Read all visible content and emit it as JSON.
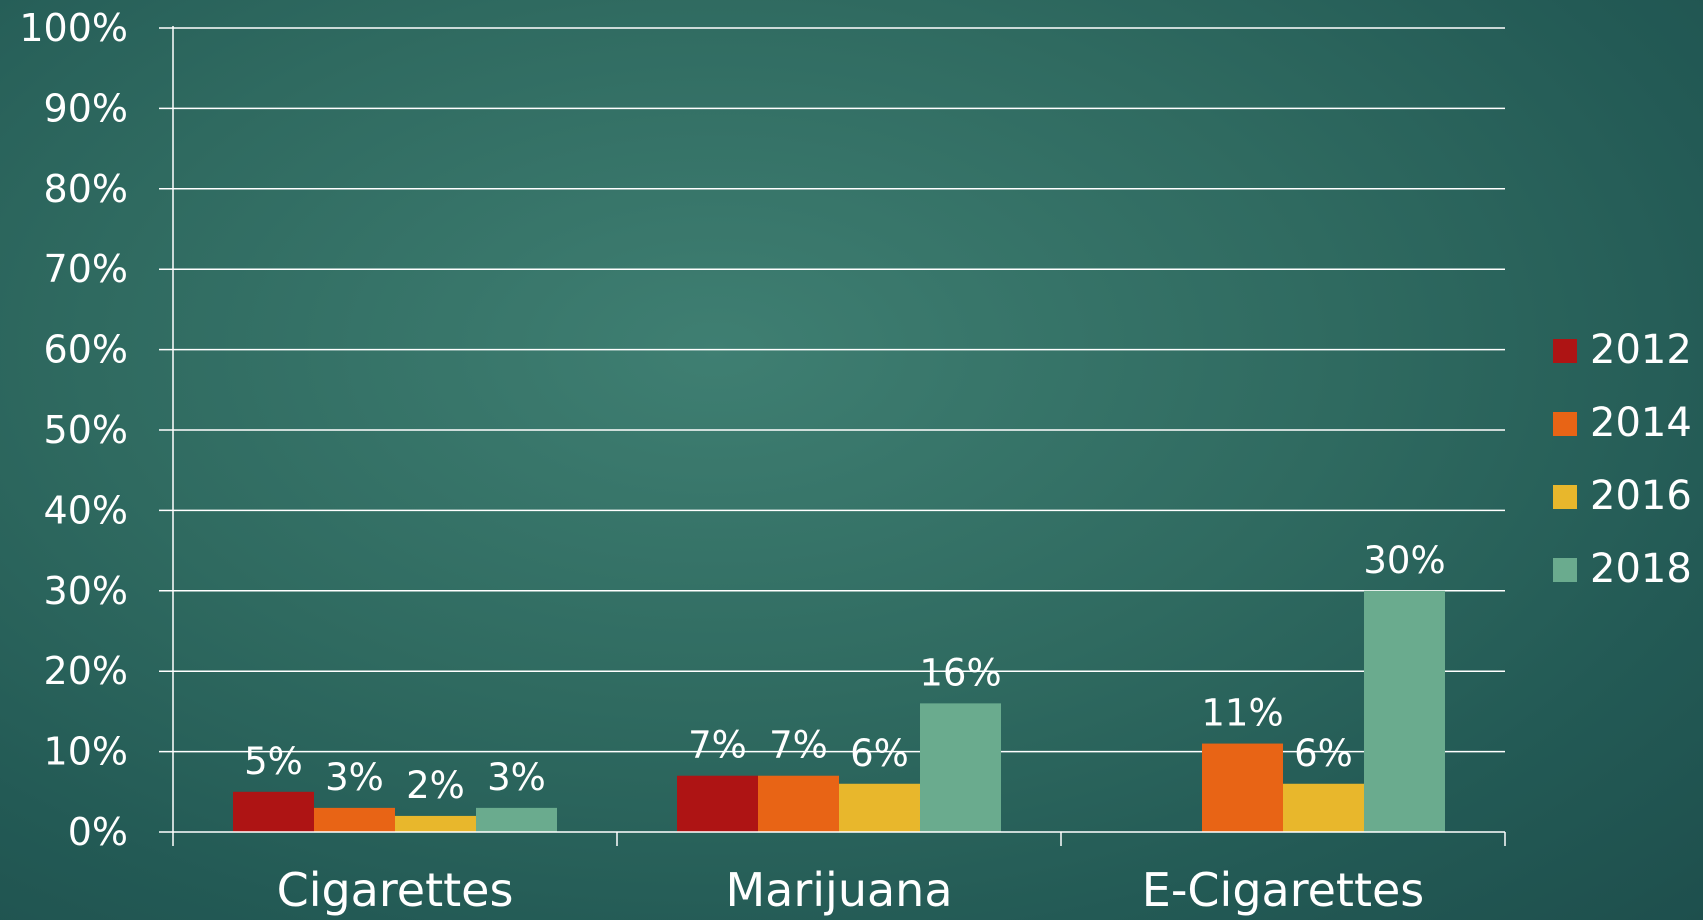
{
  "chart_data": {
    "type": "bar",
    "title": "",
    "xlabel": "",
    "ylabel": "",
    "categories": [
      "Cigarettes",
      "Marijuana",
      "E-Cigarettes"
    ],
    "series": [
      {
        "name": "2012",
        "color": "#ae1414",
        "values": [
          5,
          7,
          null
        ],
        "labels": [
          "5%",
          "7%",
          ""
        ]
      },
      {
        "name": "2014",
        "color": "#e86415",
        "values": [
          3,
          7,
          11
        ],
        "labels": [
          "3%",
          "7%",
          "11%"
        ]
      },
      {
        "name": "2016",
        "color": "#e8b72c",
        "values": [
          2,
          6,
          6
        ],
        "labels": [
          "2%",
          "6%",
          "6%"
        ]
      },
      {
        "name": "2018",
        "color": "#6aab8e",
        "values": [
          3,
          16,
          30
        ],
        "labels": [
          "3%",
          "16%",
          "30%"
        ]
      }
    ],
    "ylim": [
      0,
      100
    ],
    "yticks": [
      "0%",
      "10%",
      "20%",
      "30%",
      "40%",
      "50%",
      "60%",
      "70%",
      "80%",
      "90%",
      "100%"
    ],
    "grid": true,
    "legend_position": "right"
  }
}
